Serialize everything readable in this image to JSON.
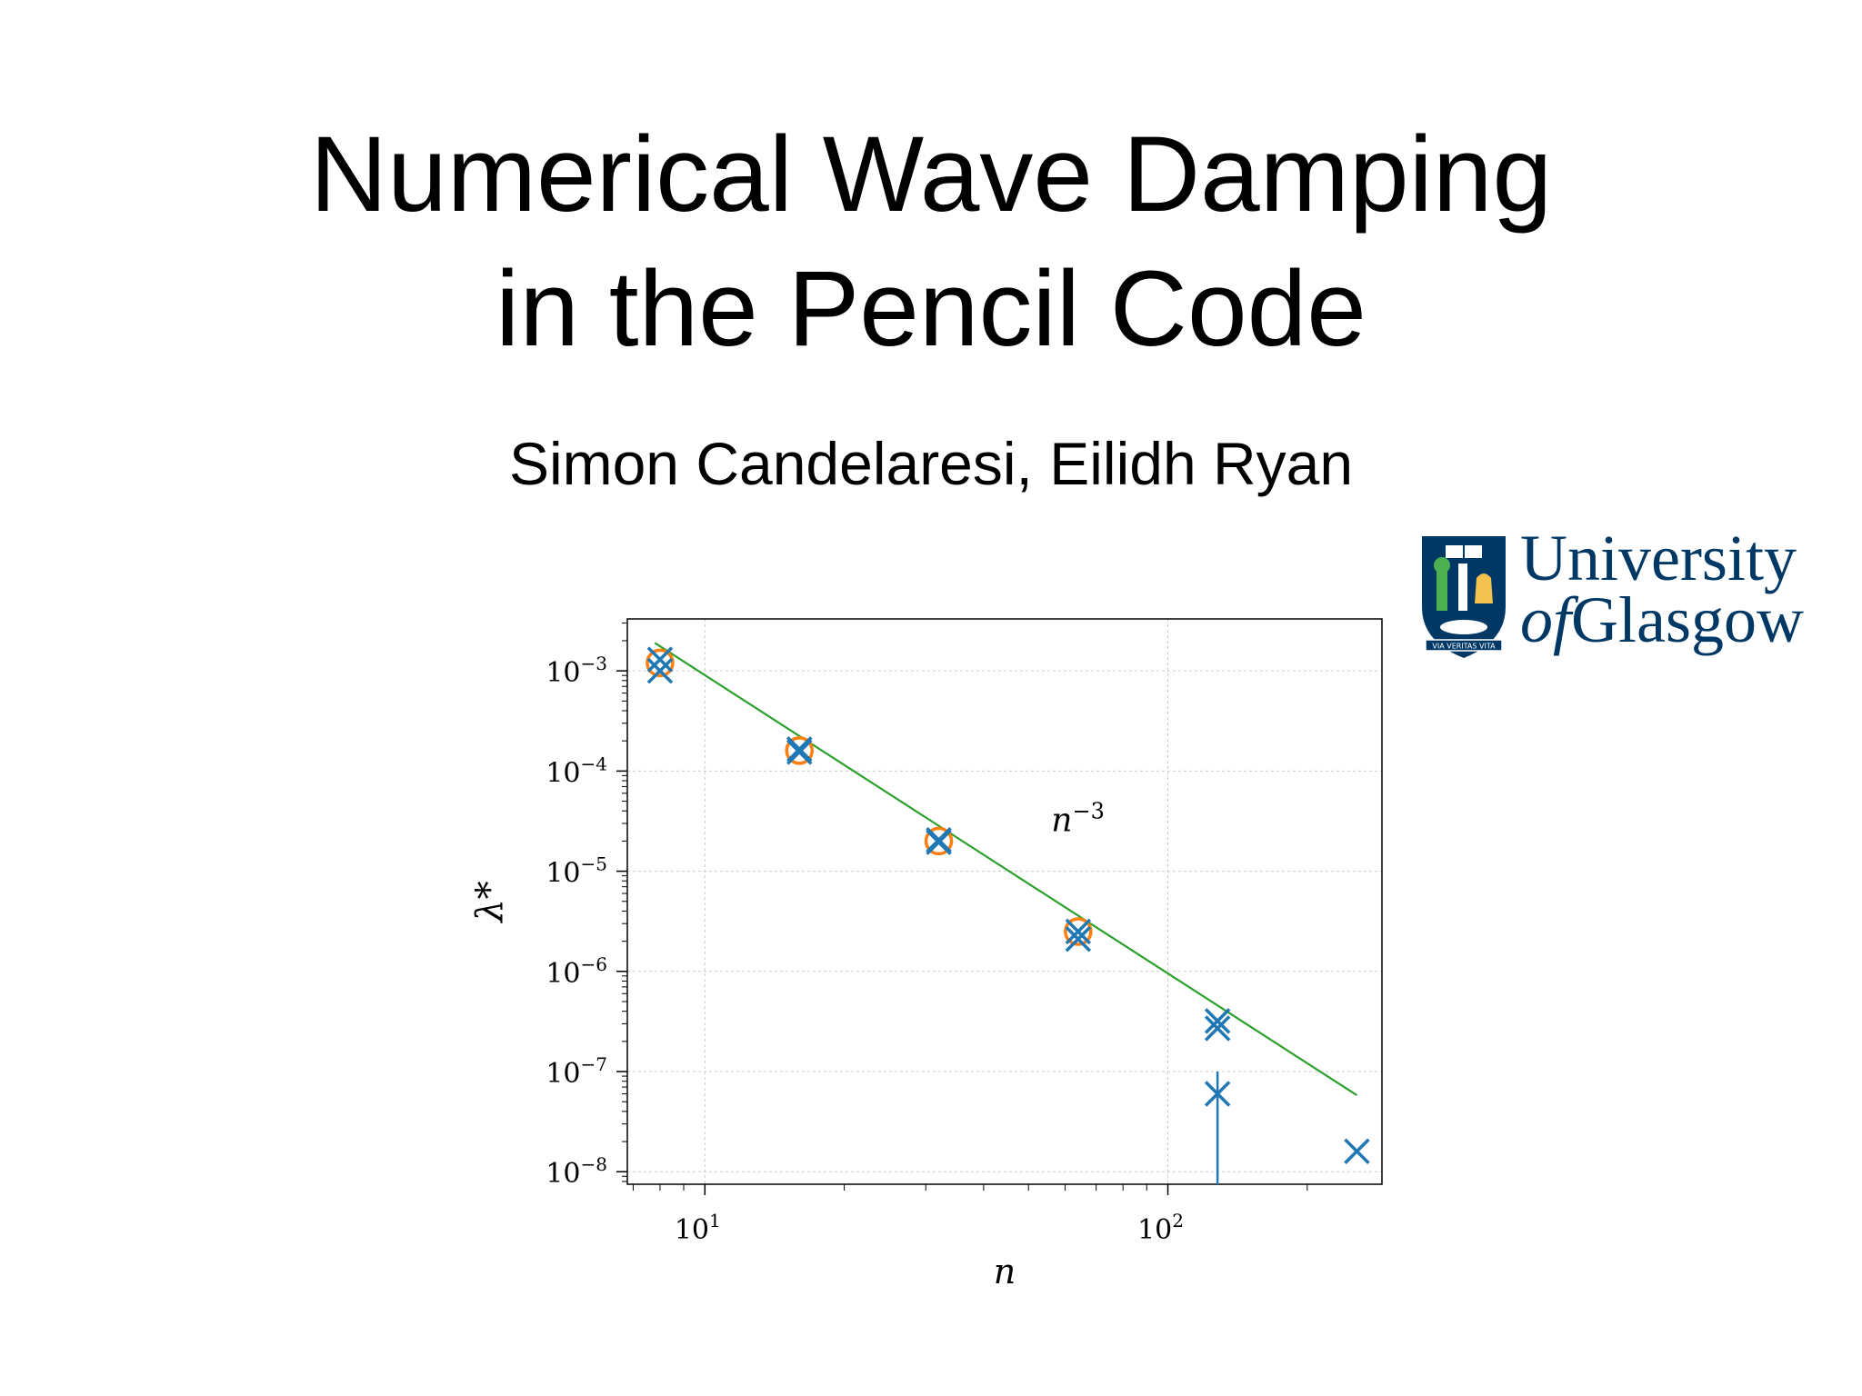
{
  "slide": {
    "title_line1": "Numerical Wave Damping",
    "title_line2": "in the Pencil Code",
    "authors": "Simon Candelaresi, Eilidh Ryan"
  },
  "logo": {
    "line1": "University",
    "line2_prefix": "of",
    "line2": "Glasgow",
    "motto": "VIA VERITAS VITA",
    "primary_color": "#003865",
    "gold_color": "#F2C14E"
  },
  "chart_data": {
    "type": "scatter",
    "title": "",
    "xlabel": "n",
    "ylabel": "λ*",
    "x_scale": "log",
    "y_scale": "log",
    "xlim": [
      6.8,
      290
    ],
    "ylim": [
      7.5e-09,
      0.0033
    ],
    "x_ticks": [
      {
        "base": "10",
        "exp": "1"
      },
      {
        "base": "10",
        "exp": "2"
      }
    ],
    "y_ticks": [
      {
        "base": "10",
        "exp": "−3"
      },
      {
        "base": "10",
        "exp": "−4"
      },
      {
        "base": "10",
        "exp": "−5"
      },
      {
        "base": "10",
        "exp": "−6"
      },
      {
        "base": "10",
        "exp": "−7"
      },
      {
        "base": "10",
        "exp": "−8"
      }
    ],
    "grid": true,
    "annotation": {
      "base": "n",
      "exp": "−3",
      "x": 56,
      "y": 2.5e-05
    },
    "colors": {
      "crosses": "#1f77b4",
      "circles": "#ff7f0e",
      "fit": "#2ca02c"
    },
    "series": [
      {
        "marker": "x",
        "points": [
          {
            "x": 8,
            "y": 0.0013
          },
          {
            "x": 8,
            "y": 0.001
          },
          {
            "x": 16,
            "y": 0.000165
          },
          {
            "x": 16,
            "y": 0.000155
          },
          {
            "x": 32,
            "y": 2.05e-05
          },
          {
            "x": 32,
            "y": 1.95e-05
          },
          {
            "x": 64,
            "y": 2.5e-06
          },
          {
            "x": 64,
            "y": 2.1e-06
          },
          {
            "x": 128,
            "y": 3.2e-07
          },
          {
            "x": 128,
            "y": 2.7e-07
          },
          {
            "x": 128,
            "y": 6e-08
          },
          {
            "x": 256,
            "y": 1.6e-08
          }
        ],
        "error_bar": {
          "x": 128,
          "y": 6e-08,
          "low": 7.5e-09,
          "high": 1e-07
        }
      },
      {
        "marker": "o",
        "points": [
          {
            "x": 8,
            "y": 0.0012
          },
          {
            "x": 16,
            "y": 0.00016
          },
          {
            "x": 32,
            "y": 2e-05
          },
          {
            "x": 64,
            "y": 2.5e-06
          }
        ]
      },
      {
        "marker": "line",
        "points": [
          {
            "x": 7.8,
            "y": 0.0019
          },
          {
            "x": 256,
            "y": 5.8e-08
          }
        ]
      }
    ]
  }
}
